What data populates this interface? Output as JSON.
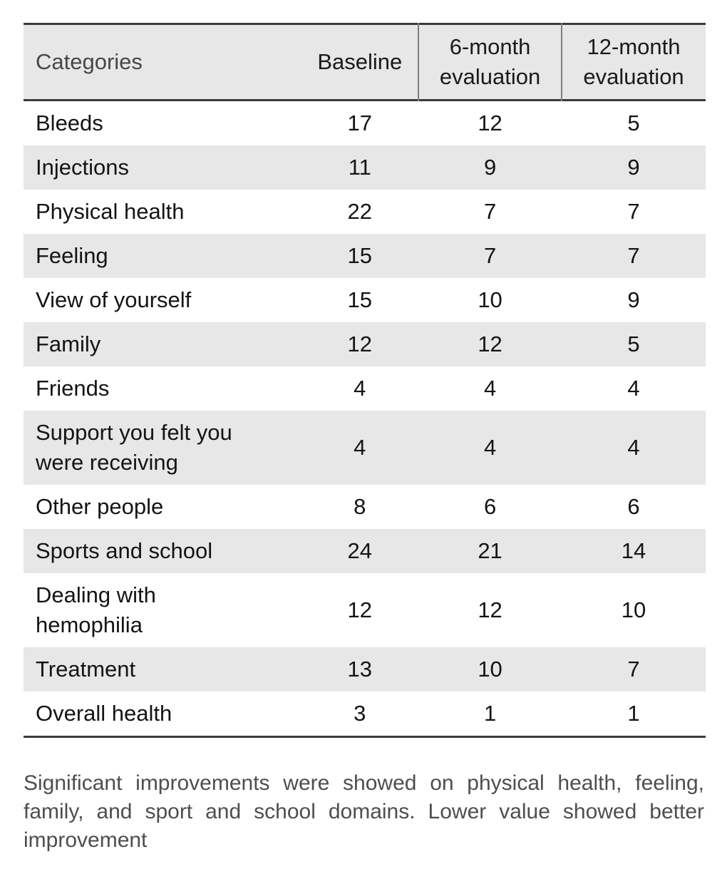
{
  "table": {
    "header": {
      "categories": "Categories",
      "baseline": "Baseline",
      "six_month": "6-month\nevaluation",
      "twelve_month": "12-month\nevaluation"
    },
    "rows": [
      [
        "Bleeds",
        "17",
        "12",
        "5"
      ],
      [
        "Injections",
        "11",
        "9",
        "9"
      ],
      [
        "Physical health",
        "22",
        "7",
        "7"
      ],
      [
        "Feeling",
        "15",
        "7",
        "7"
      ],
      [
        "View of yourself",
        "15",
        "10",
        "9"
      ],
      [
        "Family",
        "12",
        "12",
        "5"
      ],
      [
        "Friends",
        "4",
        "4",
        "4"
      ],
      [
        "Support you felt you\nwere receiving",
        "4",
        "4",
        "4"
      ],
      [
        "Other people",
        "8",
        "6",
        "6"
      ],
      [
        "Sports and school",
        "24",
        "21",
        "14"
      ],
      [
        "Dealing with\nhemophilia",
        "12",
        "12",
        "10"
      ],
      [
        "Treatment",
        "13",
        "10",
        "7"
      ],
      [
        "Overall health",
        "3",
        "1",
        "1"
      ]
    ]
  },
  "footnote": "Significant improvements were showed on physical health, feeling, family, and sport and school domains. Lower value showed better improvement",
  "colors": {
    "stripe": "#e7e7e7",
    "rule": "#3a3a3a",
    "header_divider": "#7f7f7f",
    "header_label": "#474747",
    "body_text": "#141414",
    "footnote_text": "#4e4e4e"
  }
}
